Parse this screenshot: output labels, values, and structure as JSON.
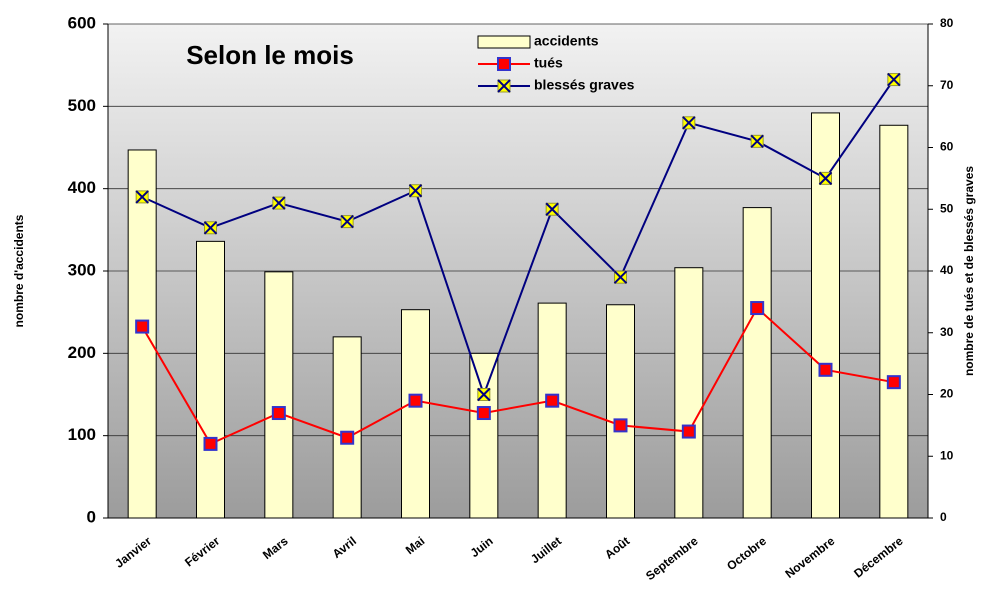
{
  "chart_data": {
    "type": "bar-line",
    "title": "Selon le mois",
    "y_label": "nombre d'accidents",
    "y2_label": "nombre de tués et de blessés graves",
    "categories": [
      "Janvier",
      "Février",
      "Mars",
      "Avril",
      "Mai",
      "Juin",
      "Juillet",
      "Août",
      "Septembre",
      "Octobre",
      "Novembre",
      "Décembre"
    ],
    "series": [
      {
        "name": "accidents",
        "type": "bar",
        "color": "#ffffcc",
        "values": [
          447,
          336,
          299,
          220,
          253,
          200,
          261,
          259,
          304,
          377,
          492,
          477
        ]
      },
      {
        "name": "tués",
        "type": "line",
        "axis": "y2",
        "color": "#ff0000",
        "values": [
          31,
          12,
          17,
          13,
          19,
          17,
          19,
          15,
          14,
          34,
          24,
          22
        ]
      },
      {
        "name": "blessés graves",
        "type": "line",
        "axis": "y2",
        "color": "#000080",
        "values": [
          52,
          47,
          51,
          48,
          53,
          20,
          50,
          39,
          64,
          61,
          55,
          71
        ]
      }
    ],
    "ylim": [
      0,
      600
    ],
    "yticks": [
      0,
      100,
      200,
      300,
      400,
      500,
      600
    ],
    "y2lim": [
      0,
      80
    ],
    "y2ticks": [
      0,
      10,
      20,
      30,
      40,
      50,
      60,
      70,
      80
    ],
    "grid": true,
    "legend": "top"
  }
}
